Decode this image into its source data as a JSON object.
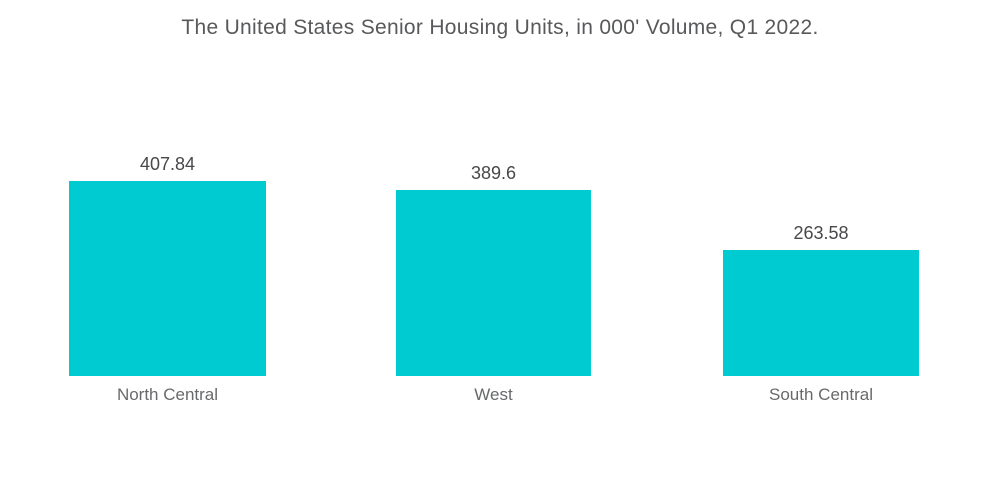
{
  "chart_data": {
    "type": "bar",
    "title": "The United States Senior Housing Units, in 000' Volume, Q1 2022.",
    "categories": [
      "North Central",
      "West",
      "South Central"
    ],
    "values": [
      407.84,
      389.6,
      263.58
    ],
    "value_labels": [
      "407.84",
      "389.6",
      "263.58"
    ],
    "xlabel": "",
    "ylabel": "",
    "ylim": [
      0,
      450
    ],
    "grid": false,
    "legend": "none",
    "axes_visible": false,
    "bar_color": "#00CBD1",
    "title_color": "#58595B",
    "value_label_color": "#47484A",
    "category_label_color": "#68696B",
    "background": "#FFFFFF"
  }
}
